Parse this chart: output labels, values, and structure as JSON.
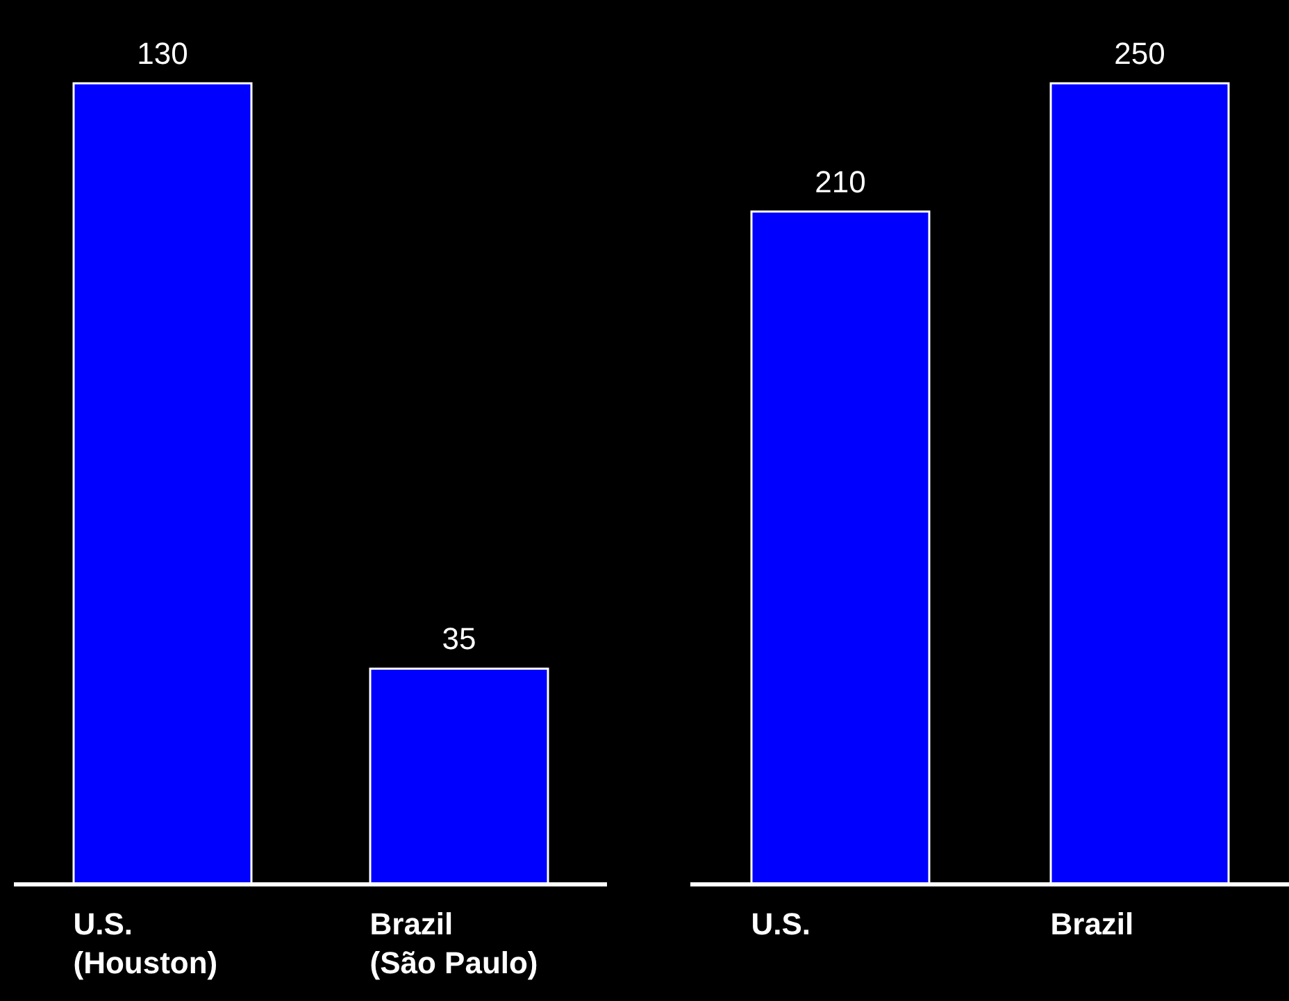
{
  "chart_data": [
    {
      "type": "bar",
      "categories": [
        "U.S.\n(Houston)",
        "Brazil\n(São Paulo)"
      ],
      "values": [
        130,
        35
      ],
      "color": "#0000ff",
      "data_labels": true
    },
    {
      "type": "bar",
      "categories": [
        "U.S.",
        "Brazil"
      ],
      "values": [
        210,
        250
      ],
      "color": "#0000ff",
      "data_labels": true
    }
  ]
}
